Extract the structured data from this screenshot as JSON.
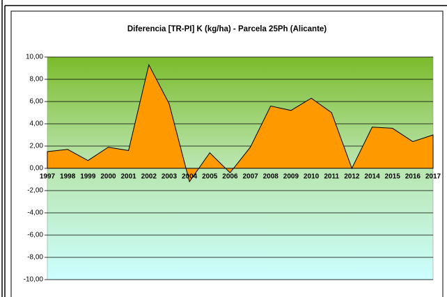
{
  "chart_data": {
    "type": "area",
    "title": "Diferencia [TR-PI] K (kg/ha) - Parcela 25Ph (Alicante)",
    "categories": [
      "1997",
      "1998",
      "1999",
      "2000",
      "2001",
      "2002",
      "2003",
      "2004",
      "2005",
      "2006",
      "2007",
      "2008",
      "2009",
      "2010",
      "2011",
      "2012",
      "2014",
      "2015",
      "2016",
      "2017"
    ],
    "values": [
      1.5,
      1.7,
      0.7,
      1.9,
      1.6,
      9.3,
      5.8,
      -1.2,
      1.4,
      -0.4,
      1.9,
      5.6,
      5.2,
      6.3,
      5.0,
      0.0,
      3.7,
      3.6,
      2.4,
      3.0
    ],
    "color": "#ff9900",
    "ylim": [
      -10,
      10
    ],
    "yticks": [
      {
        "value": -10,
        "label": "-10,00"
      },
      {
        "value": -8,
        "label": "-8,00"
      },
      {
        "value": -6,
        "label": "-6,00"
      },
      {
        "value": -4,
        "label": "-4,00"
      },
      {
        "value": -2,
        "label": "-2,00"
      },
      {
        "value": 0,
        "label": "0,00"
      },
      {
        "value": 2,
        "label": "2,00"
      },
      {
        "value": 4,
        "label": "4,00"
      },
      {
        "value": 6,
        "label": "6,00"
      },
      {
        "value": 8,
        "label": "8,00"
      },
      {
        "value": 10,
        "label": "10,00"
      }
    ],
    "grid": true
  }
}
